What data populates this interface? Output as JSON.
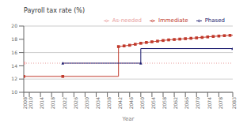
{
  "chart_data": {
    "type": "line",
    "title": "Payroll tax rate (%)",
    "x_label": "Year",
    "xlim": [
      2008,
      2083
    ],
    "ylim": [
      10,
      20
    ],
    "xticks": [
      2008,
      2010,
      2014,
      2018,
      2022,
      2026,
      2030,
      2034,
      2038,
      2042,
      2046,
      2050,
      2054,
      2058,
      2062,
      2066,
      2070,
      2074,
      2078,
      2083
    ],
    "yticks": [
      10,
      12,
      14,
      16,
      18,
      20
    ],
    "grid": "y",
    "legend": "top",
    "series": [
      {
        "name": "Immediate",
        "color": "#c0392b",
        "marker": "square",
        "line_style": "solid",
        "x": [
          2008,
          2022,
          2022,
          2042,
          2042,
          2043,
          2044,
          2045,
          2046,
          2047,
          2048,
          2049,
          2050,
          2051,
          2052,
          2053,
          2054,
          2055,
          2056,
          2057,
          2058,
          2059,
          2060,
          2061,
          2062,
          2063,
          2064,
          2065,
          2066,
          2067,
          2068,
          2069,
          2070,
          2071,
          2072,
          2073,
          2074,
          2075,
          2076,
          2077,
          2078,
          2079,
          2080,
          2081,
          2082,
          2083
        ],
        "values": [
          12.4,
          12.4,
          12.4,
          12.4,
          16.9,
          16.95,
          17.0,
          17.05,
          17.1,
          17.18,
          17.25,
          17.32,
          17.4,
          17.47,
          17.52,
          17.57,
          17.62,
          17.67,
          17.72,
          17.77,
          17.82,
          17.87,
          17.91,
          17.94,
          17.97,
          18.0,
          18.03,
          18.06,
          18.09,
          18.12,
          18.15,
          18.18,
          18.21,
          18.25,
          18.28,
          18.32,
          18.36,
          18.4,
          18.43,
          18.46,
          18.49,
          18.52,
          18.55,
          18.57,
          18.59,
          18.62
        ]
      },
      {
        "name": "Phased",
        "color": "#1a1a6e",
        "marker": "triangle",
        "line_style": "solid",
        "x": [
          2022,
          2022,
          2050,
          2050,
          2083
        ],
        "values": [
          14.4,
          14.4,
          14.4,
          16.6,
          16.6
        ]
      },
      {
        "name": "As-needed",
        "color": "#e8a0a0",
        "marker": "square",
        "line_style": "dotted",
        "x": [
          2008,
          2083
        ],
        "values": [
          14.4,
          14.4
        ]
      }
    ]
  }
}
